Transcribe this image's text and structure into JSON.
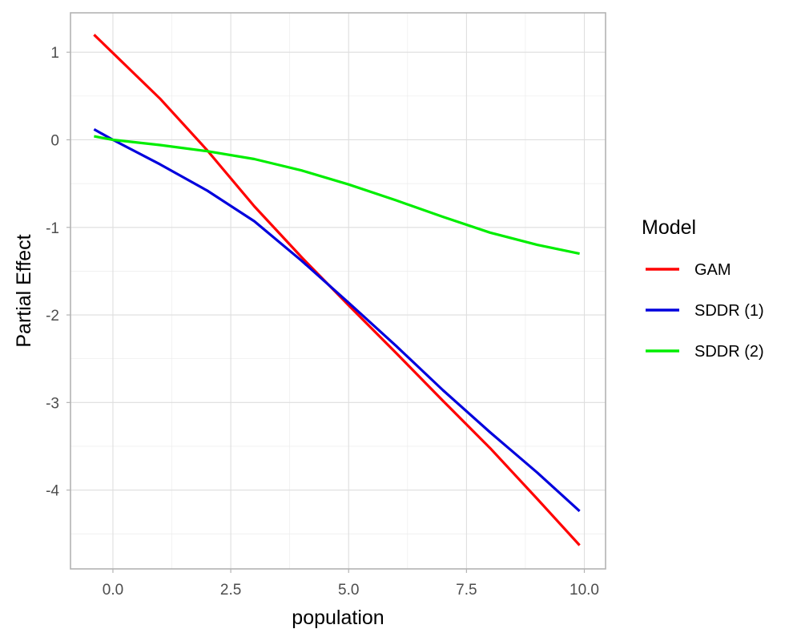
{
  "chart_data": {
    "type": "line",
    "title": "",
    "xlabel": "population",
    "ylabel": "Partial Effect",
    "xlim": [
      -0.9,
      10.45
    ],
    "ylim": [
      -4.9,
      1.45
    ],
    "x_ticks": [
      0.0,
      2.5,
      5.0,
      7.5,
      10.0
    ],
    "x_tick_labels": [
      "0.0",
      "2.5",
      "5.0",
      "7.5",
      "10.0"
    ],
    "y_ticks": [
      1,
      0,
      -1,
      -2,
      -3,
      -4
    ],
    "y_tick_labels": [
      "1",
      "0",
      "-1",
      "-2",
      "-3",
      "-4"
    ],
    "grid": true,
    "legend": {
      "title": "Model",
      "position": "right"
    },
    "series": [
      {
        "name": "GAM",
        "color": "#ff0000",
        "x": [
          -0.4,
          1.0,
          2.0,
          3.0,
          4.0,
          5.0,
          6.0,
          7.0,
          8.0,
          9.0,
          9.9
        ],
        "y": [
          1.2,
          0.47,
          -0.12,
          -0.76,
          -1.34,
          -1.89,
          -2.43,
          -2.98,
          -3.52,
          -4.1,
          -4.63
        ]
      },
      {
        "name": "SDDR (1)",
        "color": "#0000dd",
        "x": [
          -0.4,
          0.0,
          1.0,
          2.0,
          3.0,
          4.0,
          5.0,
          6.0,
          7.0,
          8.0,
          9.0,
          9.9
        ],
        "y": [
          0.12,
          0.0,
          -0.28,
          -0.58,
          -0.93,
          -1.38,
          -1.86,
          -2.35,
          -2.86,
          -3.34,
          -3.8,
          -4.24
        ]
      },
      {
        "name": "SDDR (2)",
        "color": "#00ee00",
        "x": [
          -0.4,
          0.0,
          1.0,
          2.0,
          3.0,
          4.0,
          5.0,
          6.0,
          7.0,
          8.0,
          9.0,
          9.9
        ],
        "y": [
          0.04,
          0.0,
          -0.06,
          -0.13,
          -0.22,
          -0.35,
          -0.51,
          -0.69,
          -0.88,
          -1.06,
          -1.2,
          -1.3
        ]
      }
    ]
  }
}
